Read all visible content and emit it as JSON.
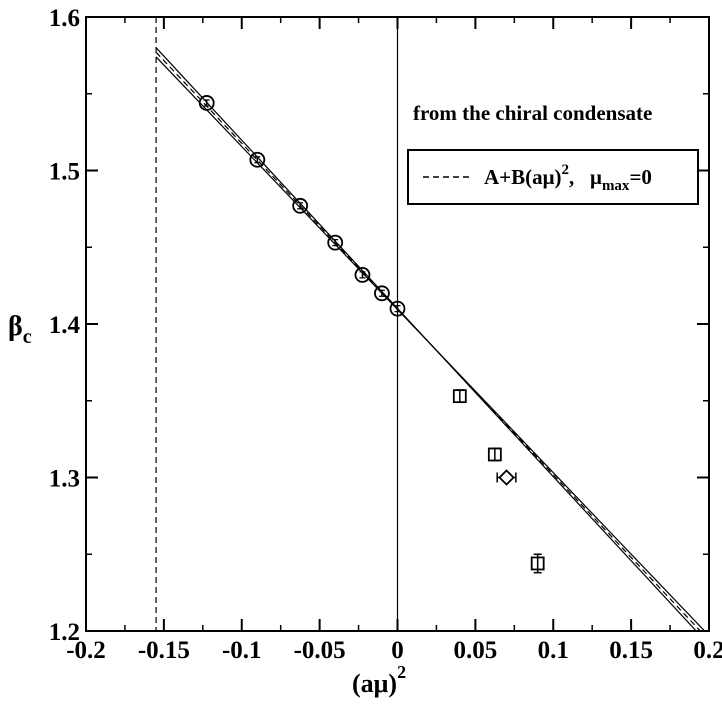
{
  "chart_data": {
    "type": "scatter",
    "xlabel": "(aμ)",
    "xlabel_sup": "2",
    "ylabel": "β",
    "ylabel_sub": "c",
    "xlim": [
      -0.2,
      0.2
    ],
    "ylim": [
      1.2,
      1.6
    ],
    "x_ticks": [
      "-0.2",
      "-0.15",
      "-0.1",
      "-0.05",
      "0",
      "0.05",
      "0.1",
      "0.15",
      "0.2"
    ],
    "y_ticks": [
      "1.2",
      "1.3",
      "1.4",
      "1.5",
      "1.6"
    ],
    "grid": false,
    "annotation": "from the chiral condensate",
    "legend": {
      "placement": "top-right",
      "entries": [
        {
          "text_main": "A+B(aμ)",
          "text_sup": "2",
          "text_sep": ",   μ",
          "text_sub": "max",
          "text_tail": "=0",
          "style": "dashed"
        }
      ]
    },
    "series": [
      {
        "marker": "circle",
        "points": [
          {
            "x": -0.1225,
            "y": 1.544
          },
          {
            "x": -0.09,
            "y": 1.507
          },
          {
            "x": -0.0625,
            "y": 1.477
          },
          {
            "x": -0.04,
            "y": 1.453
          },
          {
            "x": -0.0225,
            "y": 1.432
          },
          {
            "x": -0.01,
            "y": 1.42
          },
          {
            "x": 0.0,
            "y": 1.41
          }
        ]
      },
      {
        "marker": "square",
        "points": [
          {
            "x": 0.04,
            "y": 1.353,
            "yerr": 0.004
          },
          {
            "x": 0.0625,
            "y": 1.315,
            "yerr": 0.004
          },
          {
            "x": 0.09,
            "y": 1.244,
            "yerr": 0.006
          }
        ]
      },
      {
        "marker": "diamond",
        "points": [
          {
            "x": 0.07,
            "y": 1.3,
            "xerr": 0.006
          }
        ]
      }
    ],
    "fit_lines": [
      {
        "style": "solid",
        "x": [
          -0.155,
          0.2
        ],
        "y": [
          1.58,
          1.191
        ]
      },
      {
        "style": "dashed",
        "x": [
          -0.155,
          0.2
        ],
        "y": [
          1.577,
          1.194
        ]
      },
      {
        "style": "solid",
        "x": [
          -0.155,
          0.2
        ],
        "y": [
          1.574,
          1.197
        ]
      }
    ],
    "vertical_lines": [
      {
        "x": -0.155,
        "style": "dashed"
      },
      {
        "x": 0.0,
        "style": "solid"
      }
    ]
  }
}
